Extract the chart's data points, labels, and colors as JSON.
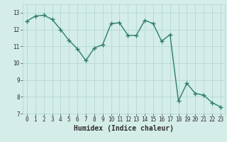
{
  "x": [
    0,
    1,
    2,
    3,
    4,
    5,
    6,
    7,
    8,
    9,
    10,
    11,
    12,
    13,
    14,
    15,
    16,
    17,
    18,
    19,
    20,
    21,
    22,
    23
  ],
  "y": [
    12.5,
    12.8,
    12.85,
    12.6,
    12.0,
    11.35,
    10.85,
    10.15,
    10.9,
    11.1,
    12.35,
    12.4,
    11.65,
    11.65,
    12.55,
    12.35,
    11.3,
    11.7,
    7.75,
    8.8,
    8.2,
    8.1,
    7.65,
    7.4
  ],
  "line_color": "#2d7d6e",
  "marker": "+",
  "marker_size": 4,
  "marker_edge_width": 1.0,
  "bg_color": "#d4ede9",
  "grid_color": "#aed4ce",
  "xlabel": "Humidex (Indice chaleur)",
  "xlim": [
    -0.5,
    23.5
  ],
  "ylim": [
    7,
    13.5
  ],
  "yticks": [
    7,
    8,
    9,
    10,
    11,
    12,
    13
  ],
  "xticks": [
    0,
    1,
    2,
    3,
    4,
    5,
    6,
    7,
    8,
    9,
    10,
    11,
    12,
    13,
    14,
    15,
    16,
    17,
    18,
    19,
    20,
    21,
    22,
    23
  ],
  "tick_labelsize": 5.5,
  "xlabel_fontsize": 7,
  "line_width": 1.0
}
